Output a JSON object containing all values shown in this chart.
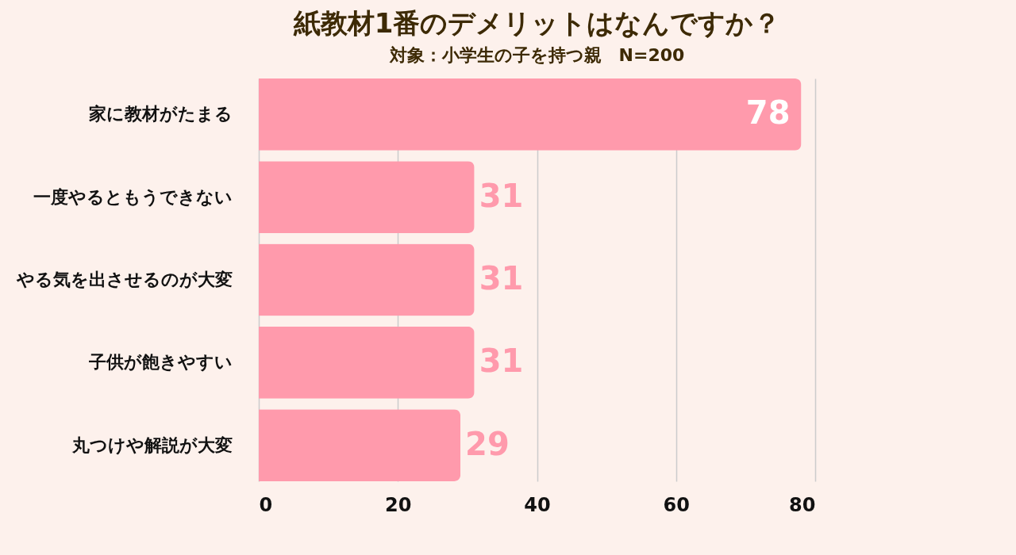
{
  "chart_data": {
    "type": "bar",
    "orientation": "horizontal",
    "title": "紙教材1番のデメリットはなんですか？",
    "subtitle": "対象：小学生の子を持つ親　N=200",
    "categories": [
      "家に教材がたまる",
      "一度やるともうできない",
      "やる気を出させるのが大変",
      "子供が飽きやすい",
      "丸つけや解説が大変"
    ],
    "values": [
      78,
      31,
      31,
      31,
      29
    ],
    "color": "#ff9aac",
    "xlim": [
      0,
      80
    ],
    "xticks": [
      0,
      20,
      40,
      60,
      80
    ],
    "grid": "x",
    "data_labels": true
  }
}
